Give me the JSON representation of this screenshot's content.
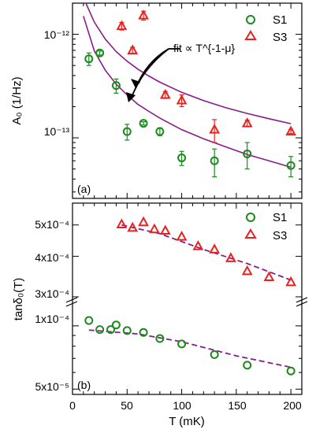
{
  "colors": {
    "s1": "#1a8a1a",
    "s3": "#e8231f",
    "fit": "#8a1a8a",
    "axis": "#000000"
  },
  "chart_data": [
    {
      "type": "scatter",
      "panel_label": "(a)",
      "xlabel": "T (mK)",
      "ylabel": "A₀ (1/Hz)",
      "xlim": [
        0,
        210
      ],
      "ylim": [
        2.6e-14,
        2e-12
      ],
      "yscale": "log",
      "y_tick_labels": [
        "10⁻¹²",
        "10⁻¹³"
      ],
      "y_tick_values": [
        1e-12,
        1e-13
      ],
      "annotation": "fit ∝ T^{-1-μ}",
      "legend": {
        "placement": "top-right",
        "entries": [
          "S1",
          "S3"
        ]
      },
      "series": [
        {
          "name": "S1",
          "marker": "circle",
          "x": [
            15,
            25,
            40,
            50,
            65,
            80,
            100,
            130,
            160,
            200
          ],
          "y": [
            5.8e-13,
            6.6e-13,
            3.2e-13,
            1.15e-13,
            1.38e-13,
            1.15e-13,
            6.4e-14,
            6e-14,
            7e-14,
            5.4e-14
          ],
          "yerr": [
            8e-14,
            3e-14,
            5e-14,
            2e-14,
            5e-15,
            1e-14,
            1e-14,
            1.8e-14,
            2e-14,
            1.2e-14
          ]
        },
        {
          "name": "S3",
          "marker": "triangle",
          "x": [
            45,
            55,
            65,
            85,
            100,
            130,
            160,
            200
          ],
          "y": [
            1.2e-12,
            7e-13,
            1.52e-12,
            2.6e-13,
            2.3e-13,
            1.2e-13,
            1.38e-13,
            1.15e-13
          ],
          "yerr": [
            1e-13,
            5e-14,
            1.5e-13,
            2e-14,
            3e-14,
            3e-14,
            1e-14,
            5e-15
          ]
        }
      ],
      "fits": [
        {
          "name": "fit S3",
          "x": [
            12,
            20,
            30,
            40,
            50,
            60,
            70,
            80,
            100,
            120,
            140,
            160,
            180,
            200
          ],
          "y": [
            2.03e-12,
            1.31e-12,
            9e-13,
            6.8e-13,
            5.5e-13,
            4.6e-13,
            3.95e-13,
            3.45e-13,
            2.75e-13,
            2.29e-13,
            1.96e-13,
            1.72e-13,
            1.53e-13,
            1.37e-13
          ]
        },
        {
          "name": "fit S1",
          "x": [
            10,
            20,
            30,
            40,
            50,
            60,
            70,
            80,
            100,
            120,
            140,
            160,
            180,
            200
          ],
          "y": [
            1.5e-12,
            6.9e-13,
            4.5e-13,
            3.3e-13,
            2.6e-13,
            2.1e-13,
            1.8e-13,
            1.55e-13,
            1.2e-13,
            9.8e-14,
            8.2e-14,
            6.9e-14,
            6e-14,
            5.2e-14
          ]
        }
      ]
    },
    {
      "type": "scatter",
      "panel_label": "(b)",
      "xlabel": "T (mK)",
      "ylabel": "tanδ₀(T)",
      "xlim": [
        0,
        210
      ],
      "yscale": "log-broken",
      "y_tick_labels": [
        "5x10⁻⁴",
        "4x10⁻⁴",
        "3x10⁻⁴",
        "1x10⁻⁴",
        "5x10⁻⁵"
      ],
      "x_tick_labels": [
        "0",
        "50",
        "100",
        "150",
        "200"
      ],
      "x_tick_values": [
        0,
        50,
        100,
        150,
        200
      ],
      "legend": {
        "placement": "top-right",
        "entries": [
          "S1",
          "S3"
        ]
      },
      "upper_ylim": [
        0.000295,
        0.00054
      ],
      "lower_ylim": [
        4.8e-05,
        0.000125
      ],
      "series": [
        {
          "name": "S1",
          "marker": "circle",
          "x": [
            15,
            25,
            35,
            40,
            50,
            65,
            80,
            100,
            130,
            160,
            200
          ],
          "y": [
            0.000106,
            9.6e-05,
            9.6e-05,
            0.000101,
            9.5e-05,
            9.3e-05,
            8.7e-05,
            8.2e-05,
            7.3e-05,
            6.5e-05,
            6.1e-05
          ]
        },
        {
          "name": "S3",
          "marker": "triangle",
          "x": [
            45,
            55,
            65,
            75,
            85,
            100,
            115,
            130,
            145,
            160,
            180,
            200
          ],
          "y": [
            0.000502,
            0.00049,
            0.00051,
            0.000485,
            0.00048,
            0.00046,
            0.00043,
            0.00042,
            0.000395,
            0.00036,
            0.000345,
            0.000333
          ]
        }
      ],
      "fits": [
        {
          "name": "fit S3",
          "x": [
            45,
            80,
            120,
            160,
            200
          ],
          "y": [
            0.0005,
            0.00047,
            0.00042,
            0.00038,
            0.000338
          ]
        },
        {
          "name": "fit S1",
          "x": [
            15,
            60,
            100,
            150,
            200
          ],
          "y": [
            9.55e-05,
            9.15e-05,
            8.4e-05,
            7.2e-05,
            6.35e-05
          ]
        }
      ]
    }
  ]
}
